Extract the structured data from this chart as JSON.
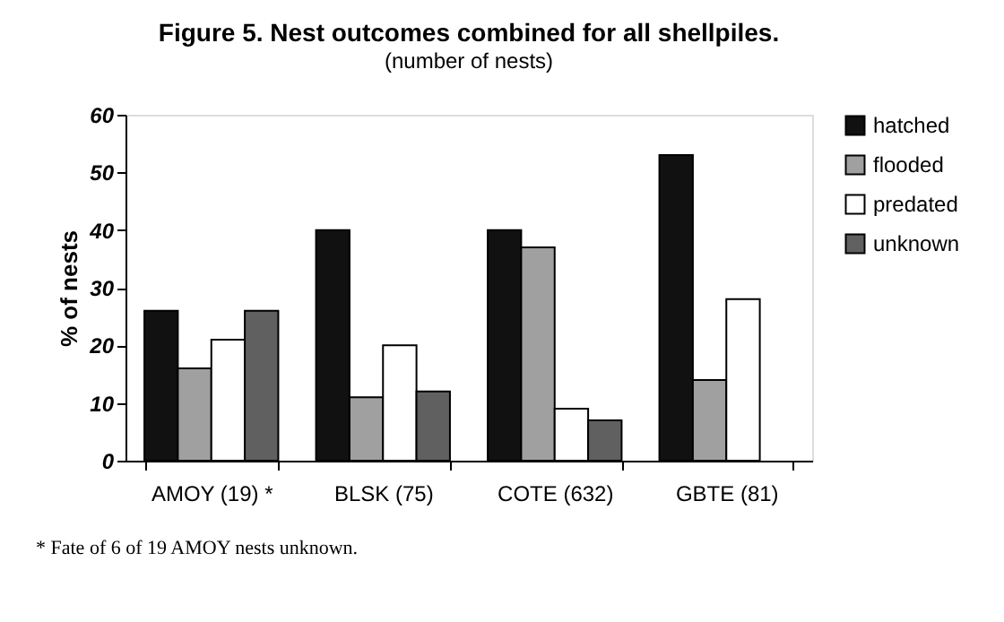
{
  "chart_data": {
    "type": "bar",
    "title": "Figure 5. Nest outcomes combined for all shellpiles.",
    "subtitle": "(number of nests)",
    "ylabel": "% of nests",
    "categories": [
      "AMOY (19) *",
      "BLSK (75)",
      "COTE (632)",
      "GBTE (81)"
    ],
    "series": [
      {
        "name": "hatched",
        "color": "#111111",
        "values": [
          26,
          40,
          40,
          53
        ]
      },
      {
        "name": "flooded",
        "color": "#a0a0a0",
        "values": [
          16,
          11,
          37,
          14
        ]
      },
      {
        "name": "predated",
        "color": "#ffffff",
        "values": [
          21,
          20,
          9,
          28
        ]
      },
      {
        "name": "unknown",
        "color": "#606060",
        "values": [
          26,
          12,
          7,
          null
        ]
      }
    ],
    "ylim": [
      0,
      60
    ],
    "yticks": [
      0,
      10,
      20,
      30,
      40,
      50,
      60
    ],
    "grid": false,
    "legend": "right",
    "annotations": [
      "* Fate of 6 of 19 AMOY nests unknown."
    ]
  }
}
